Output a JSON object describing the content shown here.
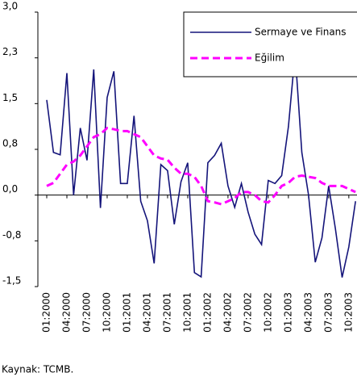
{
  "chart_data": {
    "type": "line",
    "categories": [
      "01:2000",
      null,
      null,
      "04:2000",
      null,
      null,
      "07:2000",
      null,
      null,
      "10:2000",
      null,
      null,
      "01:2001",
      null,
      null,
      "04:2001",
      null,
      null,
      "07:2001",
      null,
      null,
      "10:2001",
      null,
      null,
      "01:2002",
      null,
      null,
      "04:2002",
      null,
      null,
      "07:2002",
      null,
      null,
      "10:2002",
      null,
      null,
      "01:2003",
      null,
      null,
      "04:2003",
      null,
      null,
      "07:2003",
      null,
      null,
      "10:2003",
      null
    ],
    "series": [
      {
        "name": "Sermaye ve Finans",
        "color": "#14147a",
        "dash": false,
        "values": [
          1.56,
          0.7,
          0.66,
          2.0,
          0.0,
          1.1,
          0.57,
          2.06,
          -0.21,
          1.6,
          2.03,
          0.19,
          0.19,
          1.3,
          -0.1,
          -0.42,
          -1.12,
          0.5,
          0.4,
          -0.48,
          0.22,
          0.53,
          -1.27,
          -1.34,
          0.53,
          0.65,
          0.85,
          0.15,
          -0.2,
          0.19,
          -0.28,
          -0.64,
          -0.81,
          0.24,
          0.19,
          0.32,
          1.12,
          2.33,
          0.7,
          0.0,
          -1.1,
          -0.7,
          0.15,
          -0.55,
          -1.35,
          -0.85,
          -0.1
        ]
      },
      {
        "name": "Eğilim",
        "color": "#ff00ff",
        "dash": true,
        "values": [
          0.15,
          0.2,
          0.35,
          0.5,
          0.55,
          0.65,
          0.8,
          0.95,
          1.0,
          1.1,
          1.08,
          1.05,
          1.05,
          1.0,
          0.95,
          0.8,
          0.65,
          0.6,
          0.58,
          0.45,
          0.35,
          0.35,
          0.3,
          0.15,
          -0.1,
          -0.12,
          -0.15,
          -0.1,
          -0.05,
          0.05,
          0.05,
          0.0,
          -0.1,
          -0.12,
          0.0,
          0.15,
          0.2,
          0.3,
          0.32,
          0.3,
          0.28,
          0.2,
          0.15,
          0.15,
          0.15,
          0.1,
          0.05
        ]
      }
    ],
    "ylim": [
      -1.5,
      3.0
    ],
    "yticks": [
      {
        "value": 3.0,
        "label": "3,0"
      },
      {
        "value": 2.25,
        "label": "2,3"
      },
      {
        "value": 1.5,
        "label": "1,5"
      },
      {
        "value": 0.75,
        "label": "0,8"
      },
      {
        "value": 0,
        "label": "0,0"
      },
      {
        "value": -0.75,
        "label": "-0,8"
      },
      {
        "value": -1.5,
        "label": "-1,5"
      }
    ],
    "grid": false,
    "legend": "upper right",
    "source": "Kaynak: TCMB."
  }
}
